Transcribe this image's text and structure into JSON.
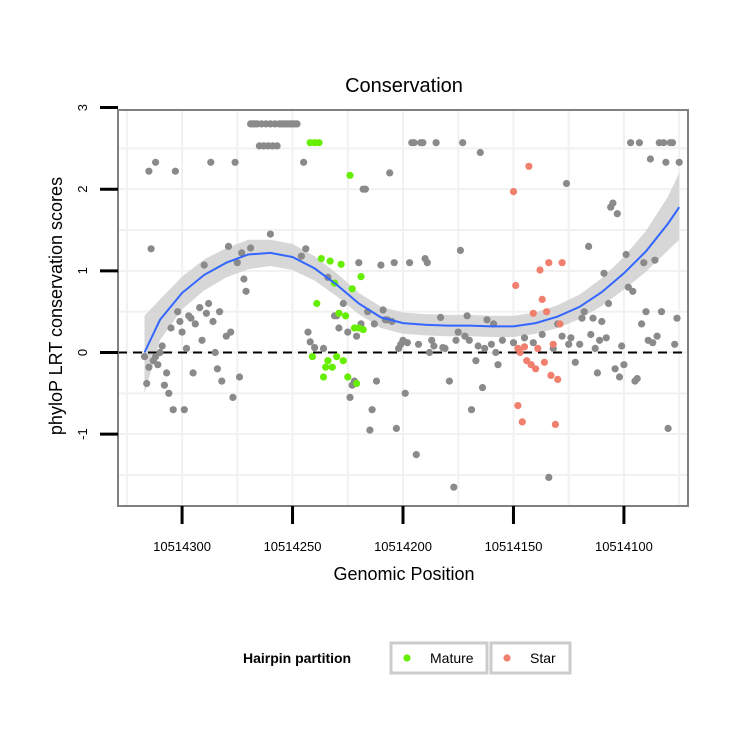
{
  "chart_data": {
    "type": "scatter",
    "title": "Conservation",
    "xlabel": "Genomic Position",
    "ylabel": "phyloP LRT conservation scores",
    "xlim": [
      10514329,
      10514071
    ],
    "x_reversed": true,
    "ylim": [
      -1.88,
      2.97
    ],
    "x_ticks": [
      10514300,
      10514250,
      10514200,
      10514150,
      10514100
    ],
    "x_tick_labels": [
      "10514300",
      "10514250",
      "10514200",
      "10514150",
      "10514100"
    ],
    "y_ticks": [
      -1,
      0,
      1,
      2,
      3
    ],
    "y_tick_labels": [
      "-1",
      "0",
      "1",
      "2",
      "3"
    ],
    "reference_line": {
      "y": 0,
      "style": "dashed"
    },
    "grid": true,
    "legend": {
      "title": "Hairpin partition",
      "position": "bottom",
      "entries": [
        {
          "label": "Mature",
          "color": "#66ee00"
        },
        {
          "label": "Star",
          "color": "#f07f6e"
        }
      ]
    },
    "colors": {
      "other": "#8a8a8a",
      "Mature": "#66ee00",
      "Star": "#f07f6e",
      "smooth": "#3366ff",
      "band": "#d0d0d0"
    },
    "series": [
      {
        "name": "",
        "group": "other",
        "points": [
          [
            10514317,
            -0.05
          ],
          [
            10514316,
            -0.38
          ],
          [
            10514315,
            2.22
          ],
          [
            10514315,
            -0.18
          ],
          [
            10514314,
            1.27
          ],
          [
            10514313,
            -0.1
          ],
          [
            10514312,
            2.33
          ],
          [
            10514312,
            -0.05
          ],
          [
            10514311,
            -0.15
          ],
          [
            10514310,
            0.0
          ],
          [
            10514309,
            0.08
          ],
          [
            10514308,
            -0.4
          ],
          [
            10514307,
            -0.25
          ],
          [
            10514306,
            -0.5
          ],
          [
            10514305,
            0.3
          ],
          [
            10514304,
            -0.7
          ],
          [
            10514303,
            2.22
          ],
          [
            10514302,
            0.5
          ],
          [
            10514301,
            0.38
          ],
          [
            10514300,
            0.25
          ],
          [
            10514299,
            -0.7
          ],
          [
            10514298,
            0.05
          ],
          [
            10514297,
            0.45
          ],
          [
            10514296,
            0.42
          ],
          [
            10514295,
            -0.25
          ],
          [
            10514294,
            0.35
          ],
          [
            10514292,
            0.55
          ],
          [
            10514291,
            0.15
          ],
          [
            10514290,
            1.07
          ],
          [
            10514289,
            0.48
          ],
          [
            10514288,
            0.6
          ],
          [
            10514287,
            2.33
          ],
          [
            10514286,
            0.38
          ],
          [
            10514285,
            0.0
          ],
          [
            10514284,
            -0.2
          ],
          [
            10514283,
            0.5
          ],
          [
            10514282,
            -0.35
          ],
          [
            10514280,
            0.2
          ],
          [
            10514279,
            1.3
          ],
          [
            10514278,
            0.25
          ],
          [
            10514277,
            -0.55
          ],
          [
            10514276,
            2.33
          ],
          [
            10514275,
            1.1
          ],
          [
            10514274,
            -0.3
          ],
          [
            10514273,
            1.22
          ],
          [
            10514272,
            0.9
          ],
          [
            10514271,
            0.75
          ],
          [
            10514269,
            1.28
          ],
          [
            10514269,
            2.8
          ],
          [
            10514268,
            2.8
          ],
          [
            10514267,
            2.8
          ],
          [
            10514266,
            2.8
          ],
          [
            10514265,
            2.53
          ],
          [
            10514264,
            2.8
          ],
          [
            10514263,
            2.53
          ],
          [
            10514262,
            2.8
          ],
          [
            10514261,
            2.53
          ],
          [
            10514260,
            2.8
          ],
          [
            10514260,
            1.45
          ],
          [
            10514259,
            2.53
          ],
          [
            10514258,
            2.8
          ],
          [
            10514257,
            2.53
          ],
          [
            10514256,
            2.8
          ],
          [
            10514255,
            2.8
          ],
          [
            10514254,
            2.8
          ],
          [
            10514253,
            2.8
          ],
          [
            10514252,
            2.8
          ],
          [
            10514251,
            2.8
          ],
          [
            10514250,
            2.8
          ],
          [
            10514249,
            2.8
          ],
          [
            10514248,
            2.8
          ],
          [
            10514246,
            1.18
          ],
          [
            10514245,
            2.33
          ],
          [
            10514244,
            1.27
          ],
          [
            10514243,
            0.25
          ],
          [
            10514242,
            0.13
          ],
          [
            10514240,
            0.06
          ],
          [
            10514236,
            0.05
          ],
          [
            10514234,
            0.92
          ],
          [
            10514231,
            0.45
          ],
          [
            10514230,
            0.45
          ],
          [
            10514229,
            0.3
          ],
          [
            10514227,
            0.6
          ],
          [
            10514225,
            0.25
          ],
          [
            10514224,
            -0.55
          ],
          [
            10514223,
            -0.4
          ],
          [
            10514222,
            -0.35
          ],
          [
            10514221,
            0.2
          ],
          [
            10514220,
            1.1
          ],
          [
            10514219,
            0.35
          ],
          [
            10514218,
            2.0
          ],
          [
            10514217,
            2.0
          ],
          [
            10514216,
            0.5
          ],
          [
            10514215,
            -0.95
          ],
          [
            10514214,
            -0.7
          ],
          [
            10514213,
            0.35
          ],
          [
            10514212,
            -0.35
          ],
          [
            10514210,
            1.07
          ],
          [
            10514209,
            0.52
          ],
          [
            10514208,
            0.4
          ],
          [
            10514207,
            0.4
          ],
          [
            10514206,
            2.2
          ],
          [
            10514205,
            0.38
          ],
          [
            10514204,
            1.1
          ],
          [
            10514203,
            -0.93
          ],
          [
            10514202,
            0.05
          ],
          [
            10514201,
            0.1
          ],
          [
            10514200,
            0.15
          ],
          [
            10514199,
            -0.5
          ],
          [
            10514198,
            0.12
          ],
          [
            10514197,
            1.1
          ],
          [
            10514196,
            2.57
          ],
          [
            10514195,
            2.57
          ],
          [
            10514194,
            -1.25
          ],
          [
            10514193,
            0.1
          ],
          [
            10514192,
            2.57
          ],
          [
            10514191,
            2.57
          ],
          [
            10514190,
            1.15
          ],
          [
            10514189,
            1.1
          ],
          [
            10514188,
            0.0
          ],
          [
            10514187,
            0.15
          ],
          [
            10514186,
            0.08
          ],
          [
            10514185,
            2.57
          ],
          [
            10514183,
            0.43
          ],
          [
            10514182,
            0.06
          ],
          [
            10514181,
            0.05
          ],
          [
            10514179,
            -0.35
          ],
          [
            10514177,
            -1.65
          ],
          [
            10514176,
            0.15
          ],
          [
            10514175,
            0.25
          ],
          [
            10514174,
            1.25
          ],
          [
            10514173,
            2.57
          ],
          [
            10514172,
            0.2
          ],
          [
            10514171,
            0.45
          ],
          [
            10514170,
            0.15
          ],
          [
            10514169,
            -0.7
          ],
          [
            10514167,
            -0.1
          ],
          [
            10514166,
            0.08
          ],
          [
            10514165,
            2.45
          ],
          [
            10514164,
            -0.43
          ],
          [
            10514163,
            0.05
          ],
          [
            10514162,
            0.4
          ],
          [
            10514160,
            0.1
          ],
          [
            10514159,
            0.35
          ],
          [
            10514158,
            0.0
          ],
          [
            10514157,
            -0.15
          ],
          [
            10514155,
            0.15
          ],
          [
            10514150,
            0.12
          ],
          [
            10514145,
            0.18
          ],
          [
            10514141,
            0.12
          ],
          [
            10514137,
            0.22
          ],
          [
            10514134,
            -1.53
          ],
          [
            10514132,
            0.05
          ],
          [
            10514130,
            0.35
          ],
          [
            10514128,
            0.2
          ],
          [
            10514126,
            2.07
          ],
          [
            10514125,
            0.1
          ],
          [
            10514124,
            0.18
          ],
          [
            10514122,
            -0.12
          ],
          [
            10514120,
            0.1
          ],
          [
            10514119,
            0.42
          ],
          [
            10514118,
            0.5
          ],
          [
            10514116,
            1.3
          ],
          [
            10514115,
            0.22
          ],
          [
            10514114,
            0.42
          ],
          [
            10514113,
            0.05
          ],
          [
            10514112,
            -0.25
          ],
          [
            10514111,
            0.15
          ],
          [
            10514110,
            0.38
          ],
          [
            10514109,
            0.97
          ],
          [
            10514108,
            0.18
          ],
          [
            10514107,
            0.6
          ],
          [
            10514106,
            1.78
          ],
          [
            10514105,
            1.83
          ],
          [
            10514104,
            -0.2
          ],
          [
            10514103,
            1.7
          ],
          [
            10514102,
            -0.3
          ],
          [
            10514101,
            0.08
          ],
          [
            10514100,
            -0.15
          ],
          [
            10514099,
            1.2
          ],
          [
            10514098,
            0.8
          ],
          [
            10514097,
            2.57
          ],
          [
            10514096,
            0.75
          ],
          [
            10514095,
            -0.35
          ],
          [
            10514094,
            -0.32
          ],
          [
            10514093,
            2.57
          ],
          [
            10514092,
            0.35
          ],
          [
            10514091,
            1.1
          ],
          [
            10514090,
            0.5
          ],
          [
            10514089,
            0.15
          ],
          [
            10514088,
            2.37
          ],
          [
            10514087,
            0.12
          ],
          [
            10514086,
            1.13
          ],
          [
            10514085,
            0.2
          ],
          [
            10514084,
            2.57
          ],
          [
            10514083,
            0.5
          ],
          [
            10514082,
            2.57
          ],
          [
            10514081,
            2.33
          ],
          [
            10514080,
            -0.93
          ],
          [
            10514079,
            2.57
          ],
          [
            10514078,
            2.57
          ],
          [
            10514077,
            0.1
          ],
          [
            10514076,
            0.42
          ],
          [
            10514075,
            2.33
          ]
        ]
      },
      {
        "name": "Mature",
        "group": "Mature",
        "points": [
          [
            10514242,
            2.57
          ],
          [
            10514241,
            -0.05
          ],
          [
            10514240,
            2.57
          ],
          [
            10514239,
            0.6
          ],
          [
            10514238,
            2.57
          ],
          [
            10514237,
            1.15
          ],
          [
            10514236,
            -0.3
          ],
          [
            10514235,
            -0.18
          ],
          [
            10514234,
            -0.1
          ],
          [
            10514233,
            1.12
          ],
          [
            10514232,
            -0.18
          ],
          [
            10514231,
            0.85
          ],
          [
            10514230,
            -0.05
          ],
          [
            10514229,
            0.48
          ],
          [
            10514228,
            1.08
          ],
          [
            10514227,
            -0.1
          ],
          [
            10514226,
            0.45
          ],
          [
            10514225,
            -0.3
          ],
          [
            10514224,
            2.17
          ],
          [
            10514223,
            0.78
          ],
          [
            10514222,
            0.3
          ],
          [
            10514221,
            -0.38
          ],
          [
            10514220,
            0.3
          ],
          [
            10514219,
            0.93
          ],
          [
            10514218,
            0.28
          ]
        ]
      },
      {
        "name": "Star",
        "group": "Star",
        "points": [
          [
            10514150,
            1.97
          ],
          [
            10514149,
            0.82
          ],
          [
            10514148,
            0.05
          ],
          [
            10514148,
            -0.65
          ],
          [
            10514147,
            0.0
          ],
          [
            10514146,
            -0.85
          ],
          [
            10514145,
            0.07
          ],
          [
            10514144,
            -0.1
          ],
          [
            10514143,
            2.28
          ],
          [
            10514142,
            -0.15
          ],
          [
            10514141,
            0.48
          ],
          [
            10514140,
            -0.2
          ],
          [
            10514139,
            0.05
          ],
          [
            10514138,
            1.01
          ],
          [
            10514137,
            0.65
          ],
          [
            10514136,
            -0.12
          ],
          [
            10514135,
            0.5
          ],
          [
            10514134,
            1.1
          ],
          [
            10514133,
            -0.28
          ],
          [
            10514132,
            0.1
          ],
          [
            10514131,
            -0.88
          ],
          [
            10514130,
            -0.33
          ],
          [
            10514129,
            0.35
          ],
          [
            10514128,
            1.1
          ]
        ]
      }
    ],
    "smooth_curve": {
      "x": [
        10514317,
        10514310,
        10514300,
        10514290,
        10514280,
        10514270,
        10514260,
        10514250,
        10514240,
        10514230,
        10514220,
        10514210,
        10514200,
        10514190,
        10514180,
        10514170,
        10514160,
        10514150,
        10514140,
        10514130,
        10514120,
        10514110,
        10514100,
        10514090,
        10514080,
        10514075
      ],
      "y": [
        0.0,
        0.4,
        0.73,
        0.95,
        1.1,
        1.2,
        1.22,
        1.17,
        1.03,
        0.83,
        0.6,
        0.43,
        0.36,
        0.34,
        0.33,
        0.33,
        0.32,
        0.32,
        0.36,
        0.44,
        0.56,
        0.74,
        0.97,
        1.24,
        1.58,
        1.78
      ],
      "band_lower": [
        -0.5,
        0.15,
        0.53,
        0.76,
        0.92,
        1.02,
        1.06,
        1.01,
        0.88,
        0.69,
        0.47,
        0.3,
        0.23,
        0.21,
        0.2,
        0.2,
        0.19,
        0.19,
        0.23,
        0.3,
        0.41,
        0.57,
        0.77,
        0.99,
        1.25,
        1.38
      ],
      "band_upper": [
        0.45,
        0.65,
        0.93,
        1.14,
        1.28,
        1.38,
        1.38,
        1.33,
        1.18,
        0.97,
        0.73,
        0.56,
        0.49,
        0.47,
        0.46,
        0.46,
        0.45,
        0.45,
        0.49,
        0.58,
        0.71,
        0.91,
        1.17,
        1.49,
        1.91,
        2.2
      ]
    }
  }
}
